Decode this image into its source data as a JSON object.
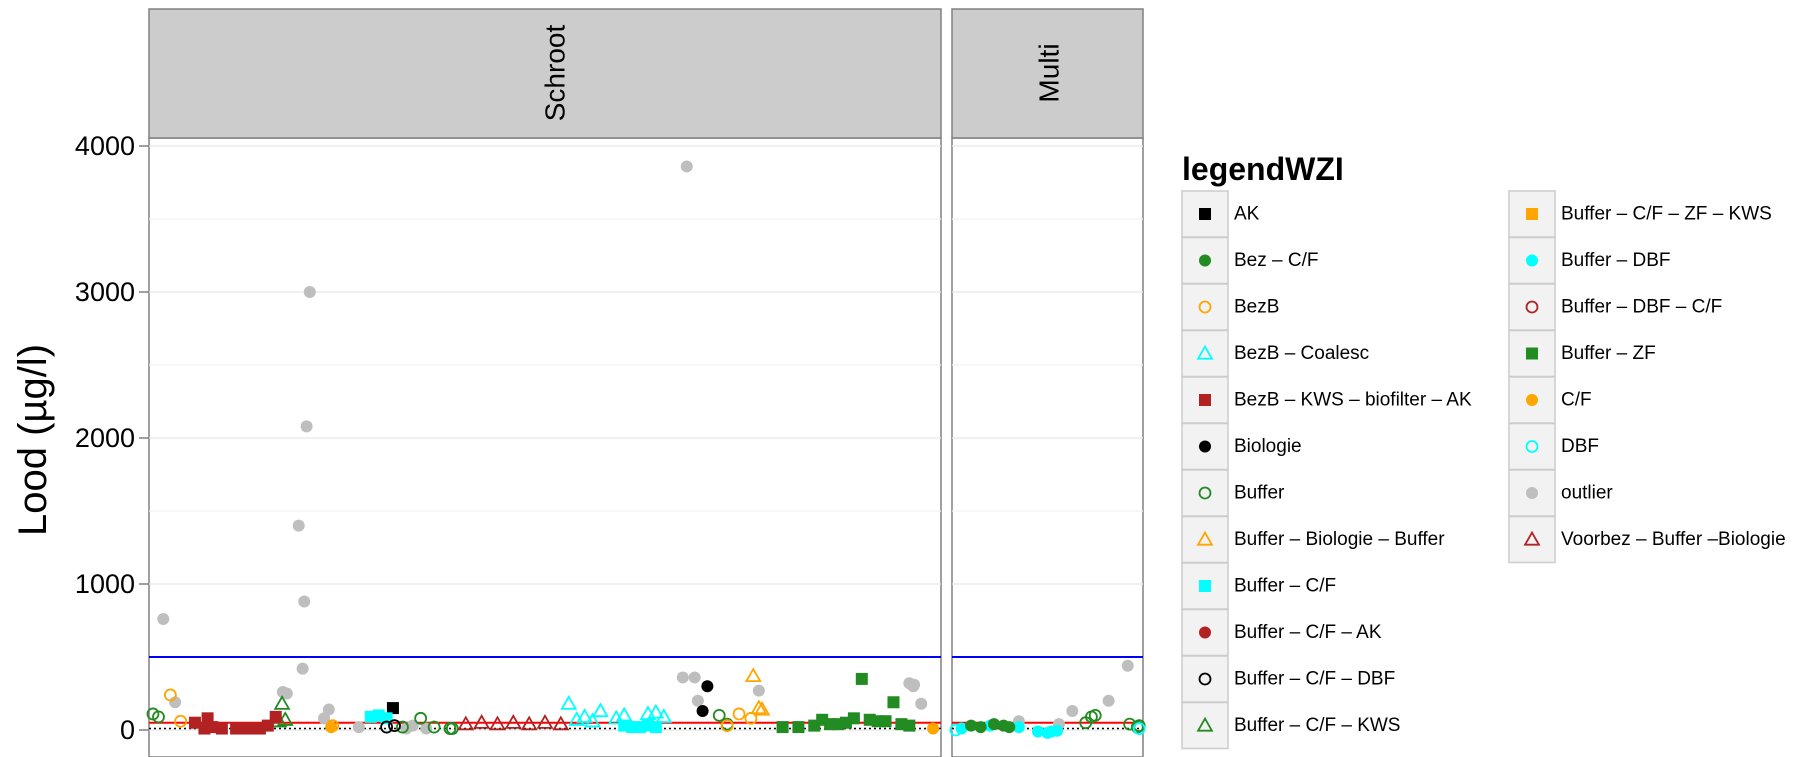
{
  "chart_data": {
    "type": "scatter",
    "ylabel": "Lood (µg/l)",
    "ylim": [
      -90,
      4050
    ],
    "y_ticks": [
      0,
      1000,
      2000,
      3000,
      4000
    ],
    "y_tick_labels": [
      "0",
      "1000",
      "2000",
      "3000",
      "4000"
    ],
    "grid": true,
    "reference_lines": [
      {
        "y": 500,
        "color": "#0000ff"
      },
      {
        "y": 50,
        "color": "#ff0000"
      },
      {
        "y": 10,
        "color": "#000000",
        "style": "dotted"
      }
    ],
    "panels": [
      {
        "name": "Schroot"
      },
      {
        "name": "Multi"
      }
    ],
    "legend": {
      "title": "legendWZI",
      "position": "right",
      "items": [
        {
          "label": "AK",
          "shape": "square",
          "color": "#000000"
        },
        {
          "label": "Bez – C/F",
          "shape": "circle",
          "color": "#228B22"
        },
        {
          "label": "BezB",
          "shape": "circle-open",
          "color": "#FFA500"
        },
        {
          "label": "BezB – Coalesc",
          "shape": "triangle-open",
          "color": "#00FFFF"
        },
        {
          "label": "BezB – KWS – biofilter – AK",
          "shape": "square",
          "color": "#B22222"
        },
        {
          "label": "Biologie",
          "shape": "circle",
          "color": "#000000"
        },
        {
          "label": "Buffer",
          "shape": "circle-open",
          "color": "#228B22"
        },
        {
          "label": "Buffer – Biologie – Buffer",
          "shape": "triangle-open",
          "color": "#FFA500"
        },
        {
          "label": "Buffer – C/F",
          "shape": "square",
          "color": "#00FFFF"
        },
        {
          "label": "Buffer – C/F – AK",
          "shape": "circle",
          "color": "#B22222"
        },
        {
          "label": "Buffer – C/F – DBF",
          "shape": "circle-open",
          "color": "#000000"
        },
        {
          "label": "Buffer – C/F – KWS",
          "shape": "triangle-open",
          "color": "#228B22"
        },
        {
          "label": "Buffer – C/F – ZF – KWS",
          "shape": "square",
          "color": "#FFA500"
        },
        {
          "label": "Buffer – DBF",
          "shape": "circle",
          "color": "#00FFFF"
        },
        {
          "label": "Buffer – DBF – C/F",
          "shape": "circle-open",
          "color": "#B22222"
        },
        {
          "label": "Buffer – ZF",
          "shape": "square",
          "color": "#228B22"
        },
        {
          "label": "C/F",
          "shape": "circle",
          "color": "#FFA500"
        },
        {
          "label": "DBF",
          "shape": "circle-open",
          "color": "#00FFFF"
        },
        {
          "label": "outlier",
          "shape": "circle",
          "color": "#BEBEBE"
        },
        {
          "label": "Voorbez – Buffer –Biologie",
          "shape": "triangle-open",
          "color": "#B22222"
        }
      ]
    },
    "series": [
      {
        "group": "outlier",
        "panel": "Schroot",
        "x": [
          0.018,
          0.033,
          0.189,
          0.196,
          0.199,
          0.203,
          0.169,
          0.174,
          0.194,
          0.227,
          0.679,
          0.674,
          0.689,
          0.693,
          0.77,
          0.96,
          0.966,
          0.975,
          0.965,
          0.221,
          0.265,
          0.325,
          0.333,
          0.35
        ],
        "y": [
          760,
          190,
          1400,
          880,
          2080,
          3000,
          260,
          250,
          420,
          140,
          3860,
          360,
          360,
          200,
          270,
          320,
          310,
          180,
          300,
          80,
          20,
          10,
          30,
          10
        ]
      },
      {
        "group": "outlier",
        "panel": "Multi",
        "x": [
          0.35,
          0.63,
          0.82,
          0.92,
          0.56
        ],
        "y": [
          60,
          130,
          200,
          440,
          40
        ]
      },
      {
        "group": "Buffer",
        "panel": "Schroot",
        "x": [
          0.005,
          0.012,
          0.32,
          0.343,
          0.36,
          0.38,
          0.383,
          0.73,
          0.72
        ],
        "y": [
          110,
          90,
          20,
          80,
          20,
          10,
          10,
          40,
          100
        ]
      },
      {
        "group": "Buffer",
        "panel": "Multi",
        "x": [
          0.7,
          0.73,
          0.75,
          0.93,
          0.97,
          0.98
        ],
        "y": [
          50,
          90,
          100,
          40,
          20,
          30
        ]
      },
      {
        "group": "BezB",
        "panel": "Schroot",
        "x": [
          0.027,
          0.04,
          0.232,
          0.745,
          0.76,
          0.73
        ],
        "y": [
          240,
          60,
          30,
          110,
          80,
          30
        ]
      },
      {
        "group": "Buffer – C/F – KWS",
        "panel": "Schroot",
        "x": [
          0.168,
          0.172,
          0.164
        ],
        "y": [
          180,
          70,
          60
        ]
      },
      {
        "group": "AK",
        "panel": "Schroot",
        "x": [
          0.308
        ],
        "y": [
          150
        ]
      },
      {
        "group": "Biologie",
        "panel": "Schroot",
        "x": [
          0.705,
          0.699
        ],
        "y": [
          300,
          130
        ]
      },
      {
        "group": "Buffer – Biologie – Buffer",
        "panel": "Schroot",
        "x": [
          0.763,
          0.77,
          0.774
        ],
        "y": [
          370,
          150,
          140
        ]
      },
      {
        "group": "Buffer – ZF",
        "panel": "Schroot",
        "x": [
          0.9,
          0.94,
          0.92,
          0.85,
          0.87,
          0.89,
          0.91,
          0.95,
          0.96,
          0.8,
          0.82,
          0.84,
          0.86,
          0.88,
          0.93
        ],
        "y": [
          350,
          190,
          60,
          70,
          40,
          80,
          70,
          40,
          30,
          20,
          20,
          30,
          40,
          50,
          60
        ]
      },
      {
        "group": "BezB – KWS – biofilter – AK",
        "panel": "Schroot",
        "x": [
          0.058,
          0.07,
          0.08,
          0.092,
          0.11,
          0.125,
          0.14,
          0.15,
          0.16,
          0.074
        ],
        "y": [
          50,
          10,
          20,
          10,
          10,
          10,
          10,
          30,
          90,
          80
        ]
      },
      {
        "group": "Buffer – C/F",
        "panel": "Schroot",
        "x": [
          0.28,
          0.29,
          0.3,
          0.6,
          0.61,
          0.62,
          0.63,
          0.64
        ],
        "y": [
          90,
          100,
          80,
          30,
          20,
          20,
          30,
          20
        ]
      },
      {
        "group": "Buffer – DBF",
        "panel": "Multi",
        "x": [
          0.05,
          0.2,
          0.35,
          0.45,
          0.5,
          0.52,
          0.55
        ],
        "y": [
          10,
          30,
          20,
          -10,
          -20,
          -10,
          -5
        ]
      },
      {
        "group": "Bez – C/F",
        "panel": "Multi",
        "x": [
          0.1,
          0.15,
          0.22,
          0.27,
          0.3
        ],
        "y": [
          30,
          20,
          40,
          30,
          20
        ]
      },
      {
        "group": "BezB – Coalesc",
        "panel": "Schroot",
        "x": [
          0.53,
          0.55,
          0.57,
          0.59,
          0.6,
          0.63,
          0.64,
          0.65,
          0.56,
          0.54
        ],
        "y": [
          180,
          90,
          130,
          80,
          100,
          110,
          120,
          90,
          60,
          70
        ]
      },
      {
        "group": "Voorbez – Buffer –Biologie",
        "panel": "Schroot",
        "x": [
          0.4,
          0.42,
          0.44,
          0.46,
          0.48,
          0.5,
          0.52
        ],
        "y": [
          40,
          50,
          40,
          50,
          40,
          50,
          40
        ]
      },
      {
        "group": "Buffer – C/F – DBF",
        "panel": "Schroot",
        "x": [
          0.3,
          0.31
        ],
        "y": [
          20,
          30
        ]
      },
      {
        "group": "C/F",
        "panel": "Schroot",
        "x": [
          0.23,
          0.99
        ],
        "y": [
          20,
          10
        ]
      },
      {
        "group": "DBF",
        "panel": "Multi",
        "x": [
          0.02,
          0.98
        ],
        "y": [
          0,
          10
        ]
      }
    ]
  }
}
